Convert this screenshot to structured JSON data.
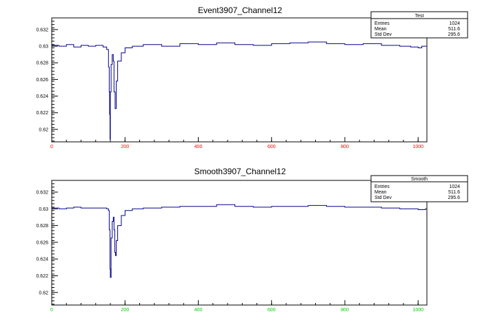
{
  "colors": {
    "series": "#00008b",
    "axis": "#000000",
    "top_xtick": "#ff0000",
    "bottom_xtick": "#00cc00",
    "background": "#ffffff"
  },
  "chart_data": [
    {
      "type": "line",
      "title": "Event3907_Channel12",
      "xlim": [
        0,
        1024
      ],
      "ylim": [
        0.6185,
        0.6334
      ],
      "xticks": [
        0,
        200,
        400,
        600,
        800,
        1000
      ],
      "xtick_labels": [
        "0",
        "200",
        "400",
        "600",
        "800",
        "1000"
      ],
      "yticks": [
        0.62,
        0.622,
        0.624,
        0.626,
        0.628,
        0.63,
        0.632
      ],
      "ytick_labels": [
        "0.62",
        "0.622",
        "0.624",
        "0.626",
        "0.628",
        "0.63",
        "0.632"
      ],
      "grid": false,
      "legend_position": "top-right",
      "stats": {
        "title": "Test",
        "rows": [
          {
            "label": "Entries",
            "value": "1024"
          },
          {
            "label": "Mean",
            "value": "511.6"
          },
          {
            "label": "Std Dev",
            "value": "295.6"
          }
        ]
      },
      "series": [
        {
          "x": [
            0,
            20,
            40,
            60,
            80,
            100,
            120,
            140,
            150,
            155,
            157,
            158,
            159,
            160,
            162,
            165,
            168,
            170,
            173,
            176,
            180,
            190,
            200,
            220,
            250,
            300,
            350,
            400,
            450,
            500,
            550,
            600,
            650,
            700,
            750,
            800,
            850,
            900,
            950,
            980,
            1000,
            1010,
            1020
          ],
          "y": [
            0.6301,
            0.63,
            0.6302,
            0.6299,
            0.6301,
            0.63,
            0.6301,
            0.6299,
            0.6296,
            0.6275,
            0.6245,
            0.6218,
            0.6188,
            0.6245,
            0.6278,
            0.629,
            0.6282,
            0.6245,
            0.6225,
            0.6258,
            0.6282,
            0.6292,
            0.6298,
            0.63,
            0.6302,
            0.63,
            0.6303,
            0.6302,
            0.6304,
            0.6302,
            0.6301,
            0.6303,
            0.6304,
            0.6305,
            0.6303,
            0.6302,
            0.6303,
            0.6301,
            0.63,
            0.6299,
            0.6298,
            0.63,
            0.63
          ]
        }
      ]
    },
    {
      "type": "line",
      "title": "Smooth3907_Channel12",
      "xlim": [
        0,
        1024
      ],
      "ylim": [
        0.6185,
        0.6334
      ],
      "xticks": [
        0,
        200,
        400,
        600,
        800,
        1000
      ],
      "xtick_labels": [
        "0",
        "200",
        "400",
        "600",
        "800",
        "1000"
      ],
      "yticks": [
        0.62,
        0.622,
        0.624,
        0.626,
        0.628,
        0.63,
        0.632
      ],
      "ytick_labels": [
        "0.62",
        "0.622",
        "0.624",
        "0.626",
        "0.628",
        "0.63",
        "0.632"
      ],
      "grid": false,
      "legend_position": "top-right",
      "stats": {
        "title": "Smooth",
        "rows": [
          {
            "label": "Entries",
            "value": "1024"
          },
          {
            "label": "Mean",
            "value": "511.6"
          },
          {
            "label": "Std Dev",
            "value": "295.6"
          }
        ]
      },
      "series": [
        {
          "x": [
            0,
            20,
            40,
            60,
            80,
            100,
            120,
            140,
            150,
            155,
            157,
            159,
            160,
            162,
            165,
            168,
            170,
            172,
            174,
            176,
            180,
            190,
            200,
            220,
            250,
            300,
            350,
            400,
            450,
            500,
            550,
            600,
            650,
            700,
            750,
            800,
            850,
            900,
            950,
            980,
            1000,
            1010,
            1020
          ],
          "y": [
            0.6301,
            0.63,
            0.6301,
            0.6302,
            0.6301,
            0.6301,
            0.6301,
            0.6301,
            0.63,
            0.6298,
            0.6275,
            0.6228,
            0.6218,
            0.6265,
            0.6285,
            0.629,
            0.6275,
            0.6248,
            0.6244,
            0.6262,
            0.628,
            0.6292,
            0.6298,
            0.63,
            0.6301,
            0.6302,
            0.6303,
            0.6303,
            0.6305,
            0.6303,
            0.6302,
            0.6303,
            0.6303,
            0.6304,
            0.6303,
            0.6302,
            0.6302,
            0.6301,
            0.63,
            0.63,
            0.6299,
            0.6299,
            0.63
          ]
        }
      ]
    }
  ]
}
